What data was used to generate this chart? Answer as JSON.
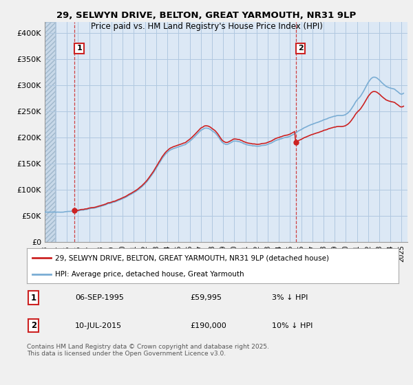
{
  "title_line1": "29, SELWYN DRIVE, BELTON, GREAT YARMOUTH, NR31 9LP",
  "title_line2": "Price paid vs. HM Land Registry's House Price Index (HPI)",
  "ylim": [
    0,
    420000
  ],
  "yticks": [
    0,
    50000,
    100000,
    150000,
    200000,
    250000,
    300000,
    350000,
    400000
  ],
  "ytick_labels": [
    "£0",
    "£50K",
    "£100K",
    "£150K",
    "£200K",
    "£250K",
    "£300K",
    "£350K",
    "£400K"
  ],
  "purchase1_price": 59995,
  "purchase2_price": 190000,
  "hpi_color": "#7aadd4",
  "price_color": "#cc2222",
  "legend_label1": "29, SELWYN DRIVE, BELTON, GREAT YARMOUTH, NR31 9LP (detached house)",
  "legend_label2": "HPI: Average price, detached house, Great Yarmouth",
  "footer": "Contains HM Land Registry data © Crown copyright and database right 2025.\nThis data is licensed under the Open Government Licence v3.0.",
  "bg_color": "#f0f0f0",
  "plot_bg_color": "#dce8f5",
  "grid_color": "#b0c8e0",
  "hatch_color": "#c8d8e8"
}
